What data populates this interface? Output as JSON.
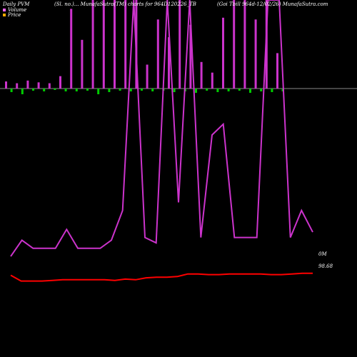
{
  "header": {
    "title": "Daily PVM",
    "center": "(Sl. no.)... MunafaSutra(TM) charts for 964D120226_TB",
    "right": "(Goi  Tbill 964d-12/02/26) MunafaSutra.com"
  },
  "legend": [
    {
      "label": "Volume",
      "color": "#ff66ff"
    },
    {
      "label": "Price",
      "color": "#ffaa00"
    }
  ],
  "value_labels": {
    "line1": "0M",
    "line2": "98.68"
  },
  "colors": {
    "background": "#000000",
    "volume_line": "#cc33cc",
    "price_line": "#ff0000",
    "baseline": "#888888",
    "bar_up": "#cc33cc",
    "bar_down": "#00cc00",
    "bar_neutral": "#ff3333"
  },
  "chart_data": {
    "type": "line",
    "note_series_scale": "y values are relative levels, 0 = bottom, 100 = top of visible chart area",
    "volume_bars": {
      "values": [
        8,
        -5,
        6,
        -8,
        9,
        -3,
        7,
        -4,
        6,
        -2,
        14,
        -4,
        90,
        -4,
        55,
        -3,
        100,
        -8,
        100,
        -5,
        100,
        -3,
        100,
        -4,
        100,
        -3,
        27,
        -4,
        78,
        -3,
        58,
        -5,
        100,
        -4,
        72,
        -6,
        30,
        -3,
        18,
        -5,
        80,
        -4,
        100,
        -3,
        100,
        -6,
        78,
        -4,
        100,
        -5,
        40,
        -4
      ],
      "colors": [
        "up",
        "down",
        "up",
        "down",
        "up",
        "down",
        "up",
        "down",
        "up",
        "down",
        "up",
        "down",
        "up",
        "down",
        "up",
        "down",
        "up",
        "down",
        "up",
        "down",
        "up",
        "down",
        "up",
        "down",
        "up",
        "down",
        "up",
        "down",
        "up",
        "down",
        "up",
        "down",
        "up",
        "down",
        "up",
        "down",
        "up",
        "down",
        "up",
        "down",
        "up",
        "down",
        "up",
        "down",
        "up",
        "down",
        "up",
        "down",
        "up",
        "down",
        "up",
        "down"
      ]
    },
    "series": [
      {
        "name": "Volume",
        "values": [
          5,
          11,
          8,
          8,
          8,
          15,
          8,
          8,
          8,
          11,
          22,
          100,
          12,
          10,
          100,
          25,
          100,
          12,
          50,
          54,
          12,
          12,
          12,
          100,
          100,
          12,
          22,
          14
        ]
      },
      {
        "name": "Price",
        "values": [
          5,
          -4,
          -4,
          -4,
          -3,
          -2,
          -2,
          -2,
          -2,
          -2,
          -3,
          -1,
          -2,
          1,
          2,
          2,
          3,
          7,
          7,
          6,
          6,
          7,
          7,
          7,
          7,
          6,
          6,
          7,
          8,
          8
        ]
      }
    ]
  }
}
